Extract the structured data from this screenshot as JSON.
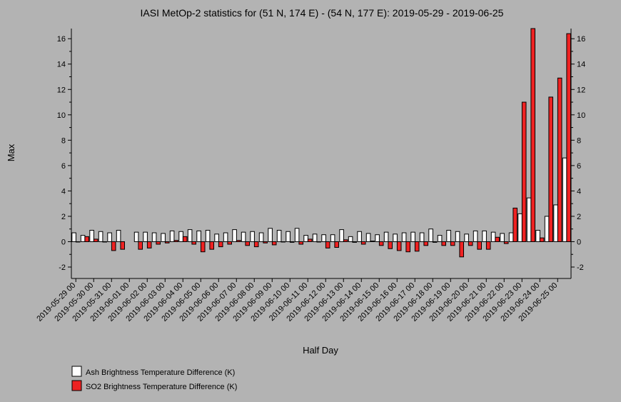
{
  "chart_data": {
    "type": "bar",
    "title": "IASI MetOp-2 statistics for (51 N, 174 E) - (54 N, 177 E): 2019-05-29 - 2019-06-25",
    "xlabel": "Half Day",
    "ylabel": "Max",
    "ylim": [
      -2.9,
      16.8
    ],
    "yticks": [
      -2,
      0,
      2,
      4,
      6,
      8,
      10,
      12,
      14,
      16
    ],
    "x_tick_labels": [
      "2019-05-29 00",
      "2019-05-30 00",
      "2019-05-31 00",
      "2019-06-01 00",
      "2019-06-02 00",
      "2019-06-03 00",
      "2019-06-04 00",
      "2019-06-05 00",
      "2019-06-06 00",
      "2019-06-07 00",
      "2019-06-08 00",
      "2019-06-09 00",
      "2019-06-10 00",
      "2019-06-11 00",
      "2019-06-12 00",
      "2019-06-13 00",
      "2019-06-14 00",
      "2019-06-15 00",
      "2019-06-16 00",
      "2019-06-17 00",
      "2019-06-18 00",
      "2019-06-19 00",
      "2019-06-20 00",
      "2019-06-21 00",
      "2019-06-22 00",
      "2019-06-23 00",
      "2019-06-24 00",
      "2019-06-25 00"
    ],
    "legend_placement": "bottom-left",
    "series": [
      {
        "name": "Ash Brightness Temperature Difference (K)",
        "color": "#ffffff",
        "values": [
          0.7,
          0.5,
          0.9,
          0.8,
          0.7,
          0.9,
          null,
          0.75,
          0.75,
          0.7,
          0.65,
          0.85,
          0.8,
          0.95,
          0.85,
          0.9,
          0.6,
          0.7,
          0.95,
          0.75,
          0.8,
          0.7,
          1.05,
          0.9,
          0.8,
          1.05,
          0.5,
          0.6,
          0.55,
          0.55,
          0.95,
          0.4,
          0.8,
          0.65,
          0.55,
          0.75,
          0.6,
          0.7,
          0.75,
          0.7,
          1.0,
          0.5,
          0.9,
          0.8,
          0.6,
          0.85,
          0.85,
          0.75,
          0.65,
          0.7,
          2.2,
          3.45,
          0.9,
          2.0,
          2.9,
          6.6
        ]
      },
      {
        "name": "SO2 Brightness Temperature Difference (K)",
        "color": "#ee2222",
        "values": [
          0.0,
          0.4,
          0.2,
          0.0,
          -0.7,
          -0.6,
          null,
          -0.6,
          -0.5,
          -0.2,
          -0.1,
          0.1,
          0.4,
          -0.2,
          -0.8,
          -0.6,
          -0.4,
          -0.2,
          0.1,
          -0.3,
          -0.4,
          -0.1,
          -0.25,
          0.0,
          -0.05,
          -0.2,
          0.2,
          0.0,
          -0.5,
          -0.45,
          0.15,
          -0.05,
          -0.2,
          0.05,
          -0.3,
          -0.55,
          -0.7,
          -0.8,
          -0.75,
          -0.3,
          -0.05,
          -0.3,
          -0.3,
          -1.2,
          -0.3,
          -0.6,
          -0.6,
          0.35,
          -0.15,
          2.65,
          11.0,
          16.8,
          0.3,
          11.4,
          12.9,
          16.4
        ]
      }
    ]
  }
}
